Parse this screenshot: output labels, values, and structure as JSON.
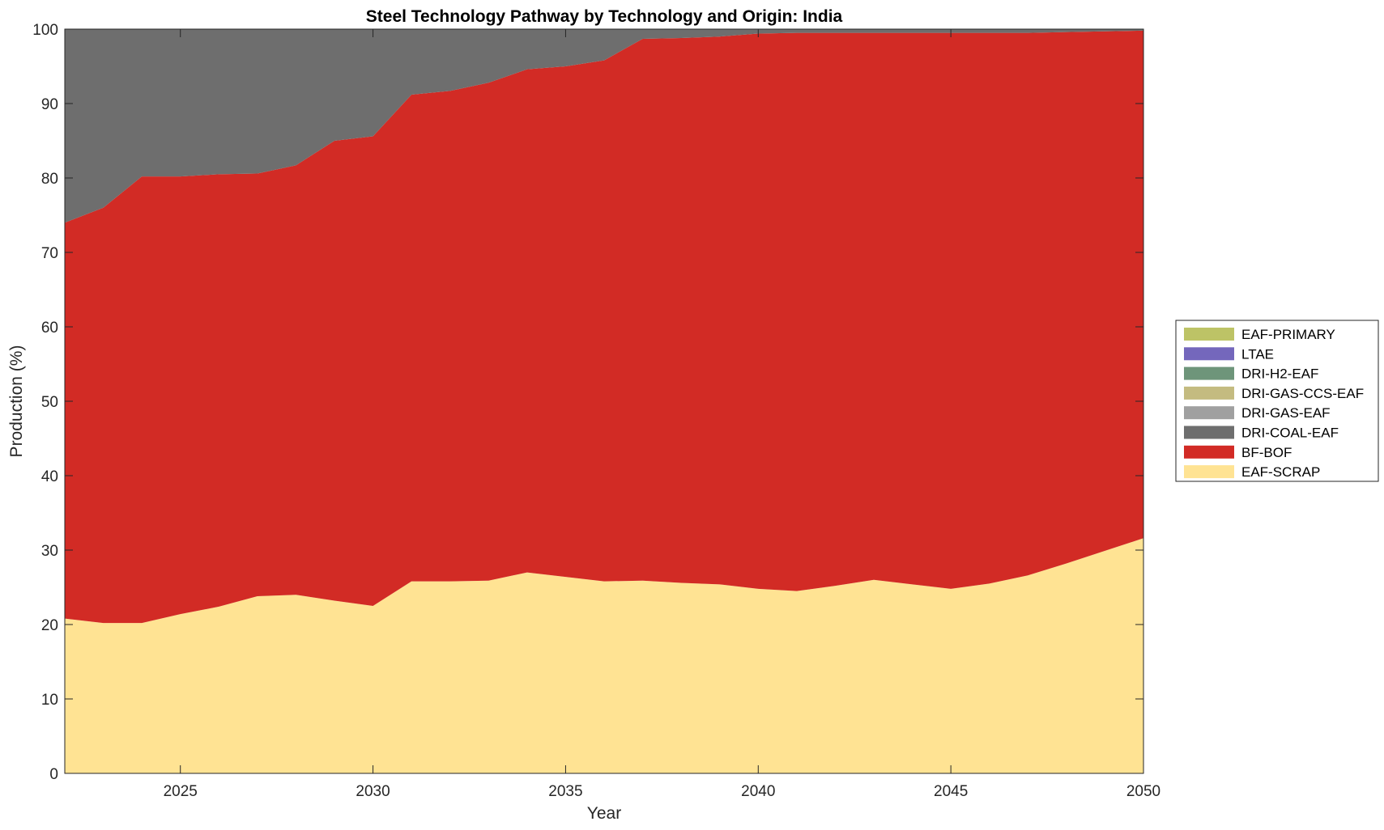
{
  "chart_data": {
    "type": "area",
    "stacked": true,
    "title": "Steel Technology Pathway by Technology and Origin: India",
    "xlabel": "Year",
    "ylabel": "Production (%)",
    "xlim": [
      2022,
      2050
    ],
    "ylim": [
      0,
      100
    ],
    "xticks": [
      2025,
      2030,
      2035,
      2040,
      2045,
      2050
    ],
    "yticks": [
      0,
      10,
      20,
      30,
      40,
      50,
      60,
      70,
      80,
      90,
      100
    ],
    "legend_position": "right",
    "x": [
      2022,
      2023,
      2024,
      2025,
      2026,
      2027,
      2028,
      2029,
      2030,
      2031,
      2032,
      2033,
      2034,
      2035,
      2036,
      2037,
      2038,
      2039,
      2040,
      2041,
      2042,
      2043,
      2044,
      2045,
      2046,
      2047,
      2048,
      2049,
      2050
    ],
    "series": [
      {
        "name": "EAF-SCRAP",
        "color": "#FFE393",
        "values": [
          20.8,
          20.2,
          20.2,
          21.4,
          22.4,
          23.8,
          24.0,
          23.2,
          22.5,
          25.8,
          25.8,
          25.9,
          27.0,
          26.4,
          25.8,
          25.9,
          25.6,
          25.4,
          24.8,
          24.5,
          25.2,
          26.0,
          25.4,
          24.8,
          25.5,
          26.6,
          28.2,
          29.9,
          31.6
        ]
      },
      {
        "name": "BF-BOF",
        "color": "#D22B25",
        "values": [
          53.2,
          55.8,
          60.0,
          58.8,
          58.1,
          56.8,
          57.7,
          61.8,
          63.1,
          65.4,
          65.9,
          66.9,
          67.6,
          68.6,
          70.0,
          72.8,
          73.2,
          73.6,
          74.6,
          75.0,
          74.3,
          73.5,
          74.1,
          74.7,
          74.0,
          72.9,
          71.4,
          69.8,
          68.2
        ]
      },
      {
        "name": "DRI-COAL-EAF",
        "color": "#6E6E6E",
        "values": [
          26.0,
          24.0,
          19.8,
          19.8,
          19.5,
          19.4,
          18.3,
          15.0,
          14.4,
          8.8,
          8.3,
          7.2,
          5.4,
          5.0,
          4.2,
          1.3,
          1.2,
          1.0,
          0.6,
          0.5,
          0.5,
          0.5,
          0.5,
          0.5,
          0.5,
          0.5,
          0.4,
          0.3,
          0.2
        ]
      },
      {
        "name": "DRI-GAS-EAF",
        "color": "#A0A0A0",
        "values": [
          0,
          0,
          0,
          0,
          0,
          0,
          0,
          0,
          0,
          0,
          0,
          0,
          0,
          0,
          0,
          0,
          0,
          0,
          0,
          0,
          0,
          0,
          0,
          0,
          0,
          0,
          0,
          0,
          0
        ]
      },
      {
        "name": "DRI-GAS-CCS-EAF",
        "color": "#C4BB80",
        "values": [
          0,
          0,
          0,
          0,
          0,
          0,
          0,
          0,
          0,
          0,
          0,
          0,
          0,
          0,
          0,
          0,
          0,
          0,
          0,
          0,
          0,
          0,
          0,
          0,
          0,
          0,
          0,
          0,
          0
        ]
      },
      {
        "name": "DRI-H2-EAF",
        "color": "#6E957A",
        "values": [
          0,
          0,
          0,
          0,
          0,
          0,
          0,
          0,
          0,
          0,
          0,
          0,
          0,
          0,
          0,
          0,
          0,
          0,
          0,
          0,
          0,
          0,
          0,
          0,
          0,
          0,
          0,
          0,
          0
        ]
      },
      {
        "name": "LTAE",
        "color": "#7467BC",
        "values": [
          0,
          0,
          0,
          0,
          0,
          0,
          0,
          0,
          0,
          0,
          0,
          0,
          0,
          0,
          0,
          0,
          0,
          0,
          0,
          0,
          0,
          0,
          0,
          0,
          0,
          0,
          0,
          0,
          0
        ]
      },
      {
        "name": "EAF-PRIMARY",
        "color": "#BDC366",
        "values": [
          0,
          0,
          0,
          0,
          0,
          0,
          0,
          0,
          0,
          0,
          0,
          0,
          0,
          0,
          0,
          0,
          0,
          0,
          0,
          0,
          0,
          0,
          0,
          0,
          0,
          0,
          0,
          0,
          0
        ]
      }
    ],
    "legend_order": [
      "EAF-PRIMARY",
      "LTAE",
      "DRI-H2-EAF",
      "DRI-GAS-CCS-EAF",
      "DRI-GAS-EAF",
      "DRI-COAL-EAF",
      "BF-BOF",
      "EAF-SCRAP"
    ]
  }
}
